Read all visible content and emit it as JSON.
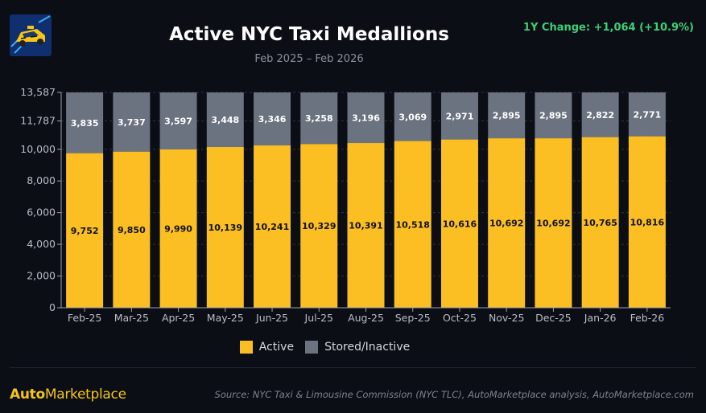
{
  "header": {
    "title": "Active NYC Taxi Medallions",
    "subtitle": "Feb 2025 – Feb 2026",
    "change": "1Y Change: +1,064 (+10.9%)"
  },
  "legend": {
    "active": "Active",
    "stored": "Stored/Inactive"
  },
  "footer": {
    "brand_a": "Auto",
    "brand_b": "Marketplace",
    "source": "Source: NYC Taxi & Limousine Commission (NYC TLC), AutoMarketplace analysis, AutoMarketplace.com"
  },
  "colors": {
    "active": "#fbbf24",
    "stored": "#6b7280",
    "axis": "#9ca3af",
    "grid": "#2c3342"
  },
  "chart_data": {
    "type": "bar",
    "stacked": true,
    "title": "Active NYC Taxi Medallions",
    "subtitle": "Feb 2025 – Feb 2026",
    "categories": [
      "Feb-25",
      "Mar-25",
      "Apr-25",
      "May-25",
      "Jun-25",
      "Jul-25",
      "Aug-25",
      "Sep-25",
      "Oct-25",
      "Nov-25",
      "Dec-25",
      "Jan-26",
      "Feb-26"
    ],
    "series": [
      {
        "name": "Active",
        "values": [
          9752,
          9850,
          9990,
          10139,
          10241,
          10329,
          10391,
          10518,
          10616,
          10692,
          10692,
          10765,
          10816
        ]
      },
      {
        "name": "Stored/Inactive",
        "values": [
          3835,
          3737,
          3597,
          3448,
          3346,
          3258,
          3196,
          3069,
          2971,
          2895,
          2895,
          2822,
          2771
        ]
      }
    ],
    "value_labels": {
      "Active": [
        "9,752",
        "9,850",
        "9,990",
        "10,139",
        "10,241",
        "10,329",
        "10,391",
        "10,518",
        "10,616",
        "10,692",
        "10,692",
        "10,765",
        "10,816"
      ],
      "Stored/Inactive": [
        "3,835",
        "3,737",
        "3,597",
        "3,448",
        "3,346",
        "3,258",
        "3,196",
        "3,069",
        "2,971",
        "2,895",
        "2,895",
        "2,822",
        "2,771"
      ]
    },
    "ylim": [
      0,
      13587
    ],
    "yticks": [
      0,
      2000,
      4000,
      6000,
      8000,
      10000,
      11787,
      13587
    ],
    "ytick_labels": [
      "0",
      "2,000",
      "4,000",
      "6,000",
      "8,000",
      "10,000",
      "11,787",
      "13,587"
    ],
    "xlabel": "",
    "ylabel": "",
    "legend": "bottom-center",
    "grid": true
  }
}
